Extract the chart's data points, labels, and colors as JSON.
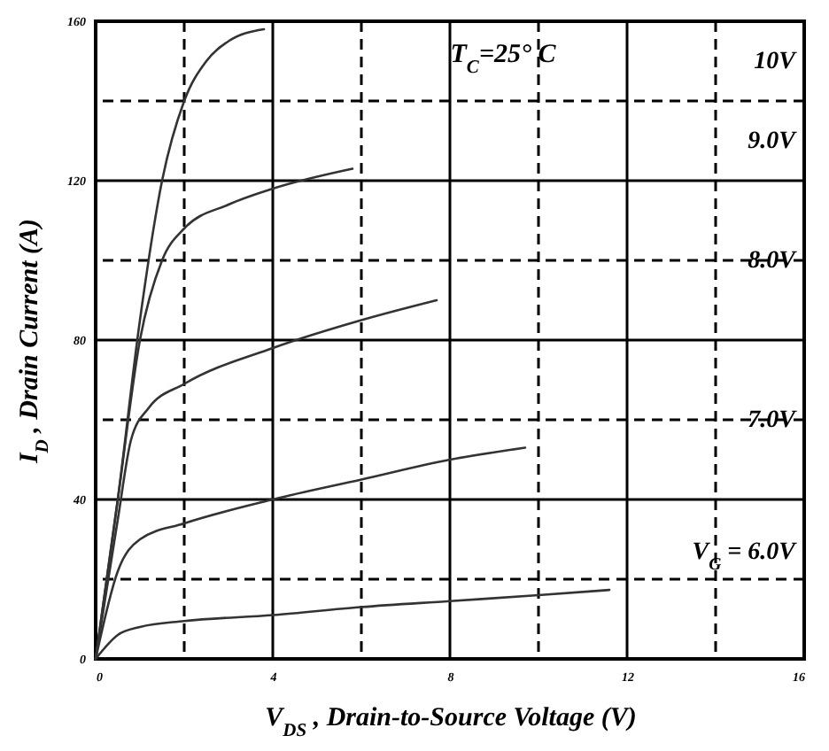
{
  "chart_data": {
    "type": "line",
    "xlabel": "V$_{DS}$ , Drain-to-Source Voltage (V)",
    "ylabel": "I$_{D}$ , Drain Current (A)",
    "annotations": [
      "T$_{C}$=25° C"
    ],
    "xlim": [
      0,
      16
    ],
    "xticks": [
      0,
      {
        "value": 2,
        "label": null
      },
      4,
      {
        "value": 6,
        "label": null
      },
      8,
      {
        "value": 10,
        "label": null
      },
      12,
      {
        "value": 14,
        "label": null
      },
      16
    ],
    "ylim": [
      0,
      160
    ],
    "yticks": [
      0,
      {
        "value": 20,
        "label": null
      },
      40,
      {
        "value": 60,
        "label": null
      },
      80,
      {
        "value": 100,
        "label": null
      },
      120,
      {
        "value": 140,
        "label": null
      },
      160
    ],
    "grid": true,
    "marker": "none",
    "line_style": "solid",
    "series": [
      {
        "name": "10V",
        "color": "#333333",
        "x": [
          0,
          0.5,
          1,
          1.5,
          2,
          2.5,
          3,
          3.8
        ],
        "values": [
          0,
          40,
          85,
          120,
          140,
          150,
          155,
          158
        ]
      },
      {
        "name": "9.0V",
        "color": "#333333",
        "x": [
          0,
          0.5,
          1,
          1.5,
          2,
          3,
          4,
          5.8
        ],
        "values": [
          0,
          40,
          80,
          100,
          108,
          114,
          118,
          123
        ]
      },
      {
        "name": "8.0V",
        "color": "#333333",
        "x": [
          0,
          0.5,
          0.8,
          1.2,
          2,
          4,
          6,
          7.7
        ],
        "values": [
          0,
          35,
          55,
          63,
          69,
          78,
          85,
          90
        ]
      },
      {
        "name": "7.0V",
        "color": "#333333",
        "x": [
          0,
          0.5,
          1,
          2,
          4,
          6,
          8,
          9.7
        ],
        "values": [
          0,
          22,
          30,
          34,
          40,
          45,
          50,
          53
        ]
      },
      {
        "name": "V$_{G}$ = 6.0V",
        "color": "#333333",
        "x": [
          0,
          0.5,
          1,
          2,
          4,
          6,
          8,
          10,
          11.6
        ],
        "values": [
          0,
          6,
          8,
          9.5,
          11,
          13,
          14.5,
          16,
          17.3
        ]
      }
    ]
  }
}
